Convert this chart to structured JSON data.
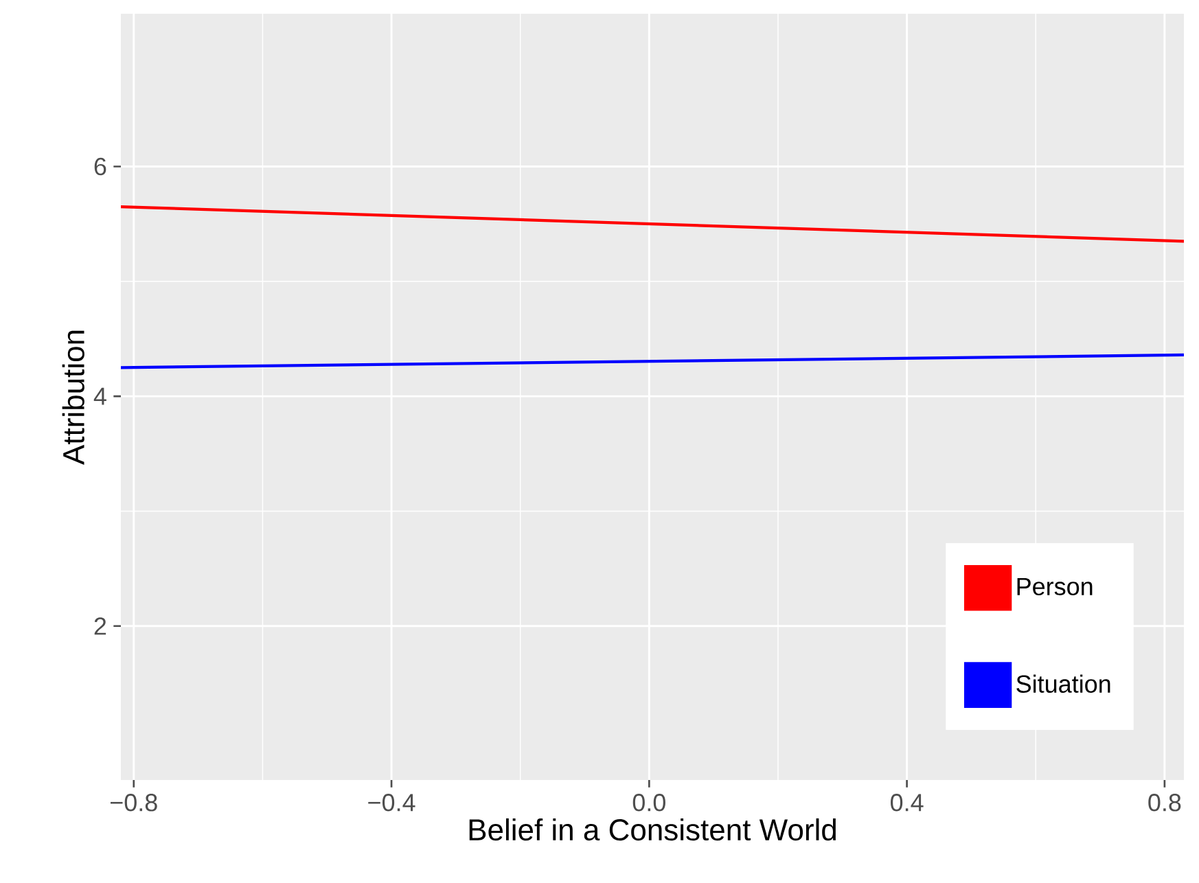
{
  "chart_data": {
    "type": "line",
    "xlabel": "Belief in a Consistent World",
    "ylabel": "Attribution",
    "xlim": [
      -0.82,
      0.83
    ],
    "ylim": [
      0.66,
      7.33
    ],
    "xticks": [
      {
        "value": -0.8,
        "label": "−0.8"
      },
      {
        "value": -0.4,
        "label": "−0.4"
      },
      {
        "value": 0.0,
        "label": "0.0"
      },
      {
        "value": 0.4,
        "label": "0.4"
      },
      {
        "value": 0.8,
        "label": "0.8"
      }
    ],
    "yticks": [
      2,
      4,
      6
    ],
    "x": [
      -0.82,
      0.83
    ],
    "grid": true,
    "legend": "bottom right",
    "marker": "none",
    "line_style": "solid",
    "series": [
      {
        "name": "Person",
        "color": "#ff0000",
        "values": [
          5.65,
          5.35
        ]
      },
      {
        "name": "Situation",
        "color": "#0000ff",
        "values": [
          4.25,
          4.36
        ]
      }
    ]
  }
}
